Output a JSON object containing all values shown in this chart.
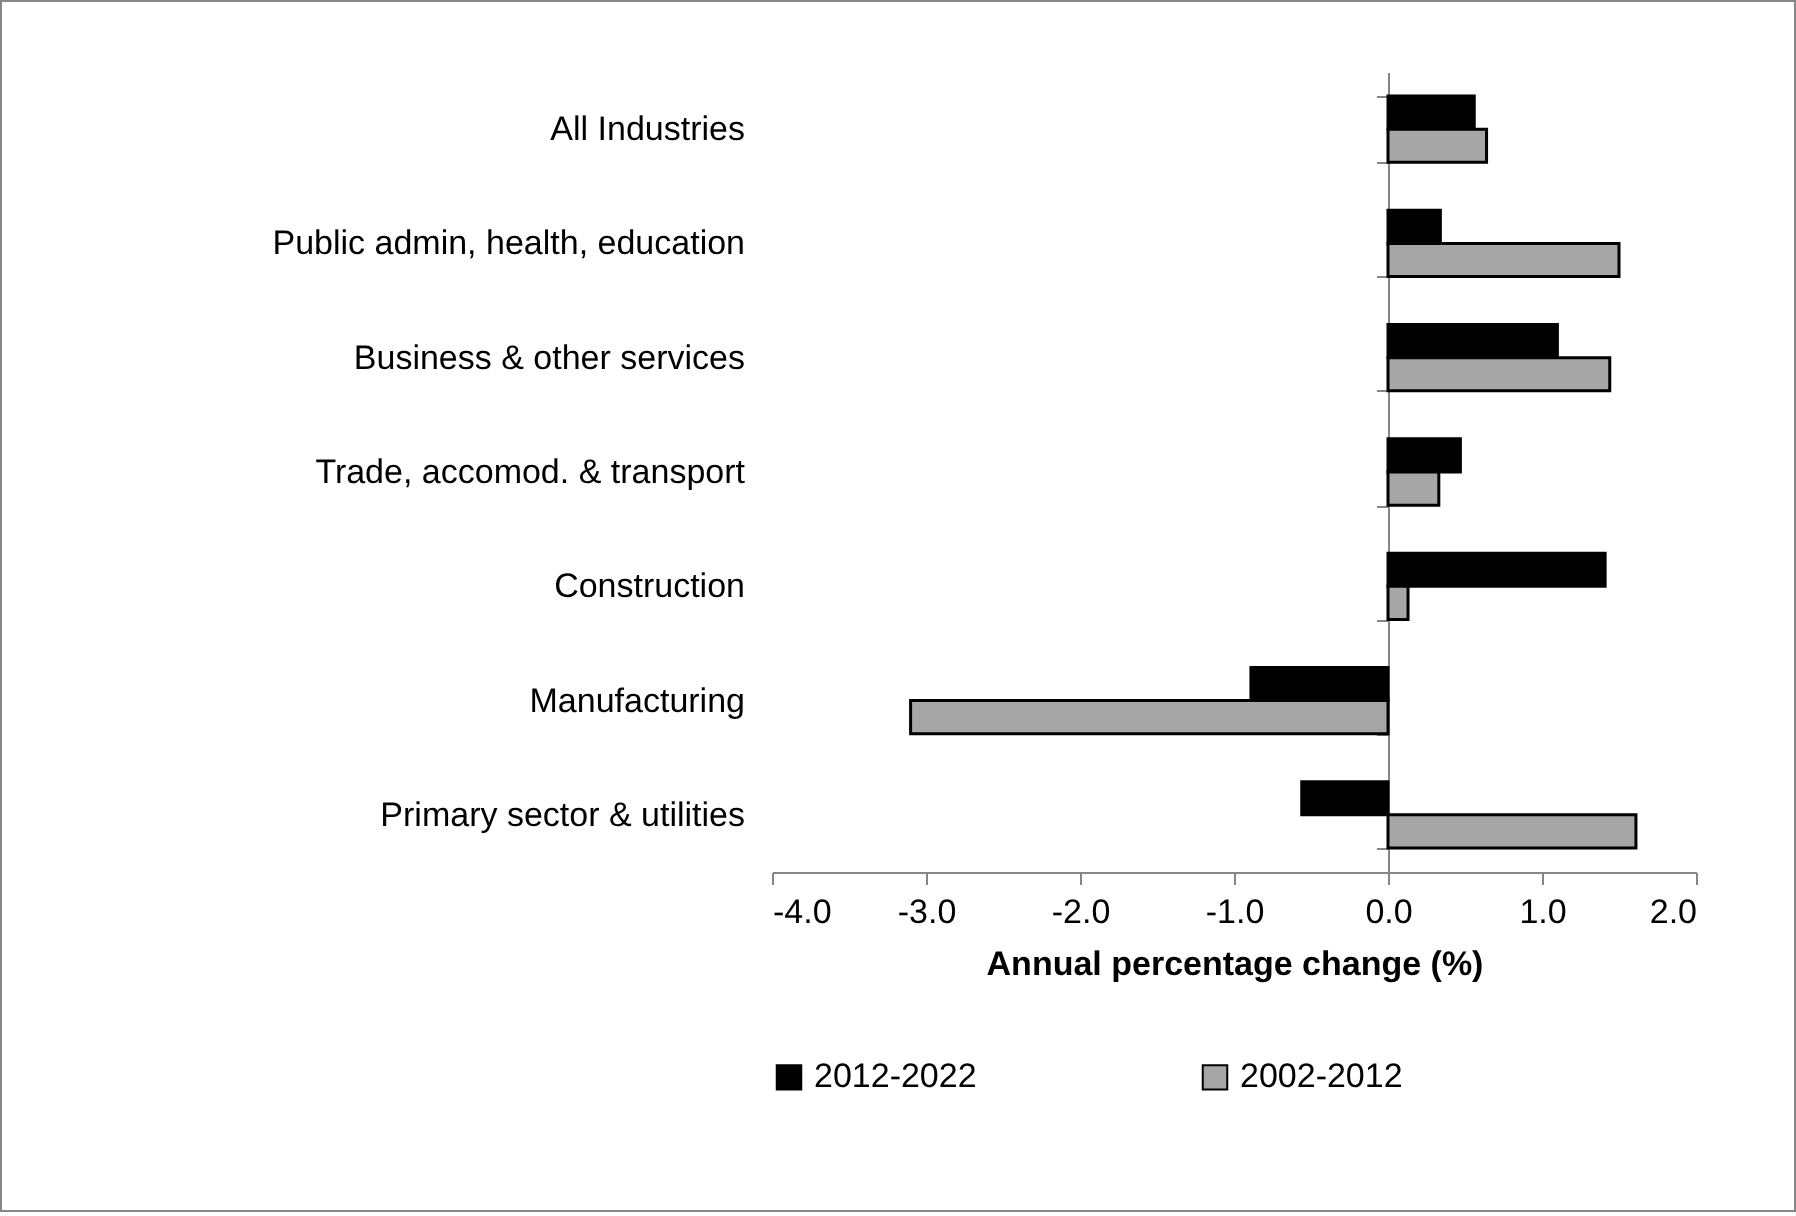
{
  "chart_data": {
    "type": "bar",
    "orientation": "horizontal",
    "categories": [
      "All Industries",
      "Public admin, health, education",
      "Business & other services",
      "Trade, accomod. & transport",
      "Construction",
      "Manufacturing",
      "Primary sector & utilities"
    ],
    "series": [
      {
        "name": "2012-2022",
        "color": "#000000",
        "values": [
          0.56,
          0.34,
          1.1,
          0.47,
          1.41,
          -0.89,
          -0.56
        ]
      },
      {
        "name": "2002-2012",
        "color": "#a6a6a6",
        "values": [
          0.64,
          1.5,
          1.44,
          0.33,
          0.13,
          -3.1,
          1.61
        ]
      }
    ],
    "xlabel": "Annual percentage change (%)",
    "xlim": [
      -4,
      2
    ],
    "xticks": [
      {
        "value": -4,
        "label": "-4.0"
      },
      {
        "value": -3,
        "label": "-3.0"
      },
      {
        "value": -2,
        "label": "-2.0"
      },
      {
        "value": -1,
        "label": "-1.0"
      },
      {
        "value": 0,
        "label": "0.0"
      },
      {
        "value": 1,
        "label": "1.0"
      },
      {
        "value": 2,
        "label": "2.0"
      }
    ],
    "legend": "bottom"
  }
}
